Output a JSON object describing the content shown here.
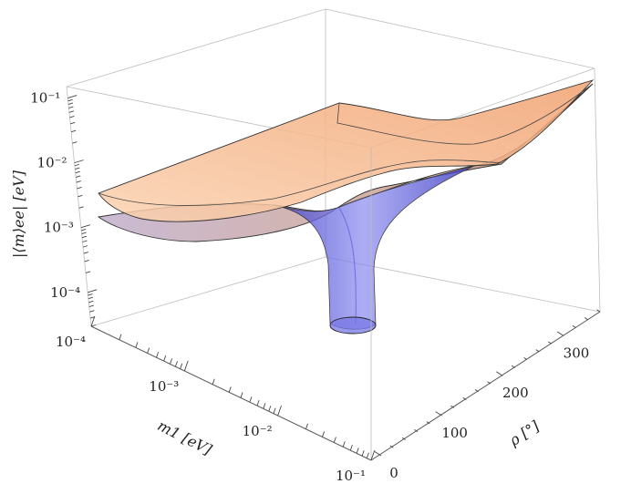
{
  "chart_data": {
    "type": "surface3d",
    "title": "",
    "zlabel": "|⟨m⟩ee| [eV]",
    "xlabel": "m1 [eV]",
    "ylabel": "ρ [°]",
    "x_scale": "log",
    "z_scale": "log",
    "x_ticks": [
      "10⁻⁴",
      "10⁻³",
      "10⁻²",
      "10⁻¹"
    ],
    "y_ticks": [
      "0",
      "100",
      "200",
      "300"
    ],
    "z_ticks": [
      "10⁻⁴",
      "10⁻³",
      "10⁻²",
      "10⁻¹"
    ],
    "xlim": [
      0.0001,
      0.1
    ],
    "ylim": [
      0,
      360
    ],
    "zlim": [
      3e-05,
      0.15
    ],
    "series": [
      {
        "surface": "orange-upper",
        "color": "#f6b07f",
        "z_at_m1_min": 0.0045,
        "z_at_m1_max": 0.11
      },
      {
        "surface": "blue-lower",
        "color": "#6b6be0",
        "z_at_m1_min": 0.0015,
        "z_at_m1_max": 0.1,
        "cancellation_min": 5e-05
      }
    ]
  }
}
